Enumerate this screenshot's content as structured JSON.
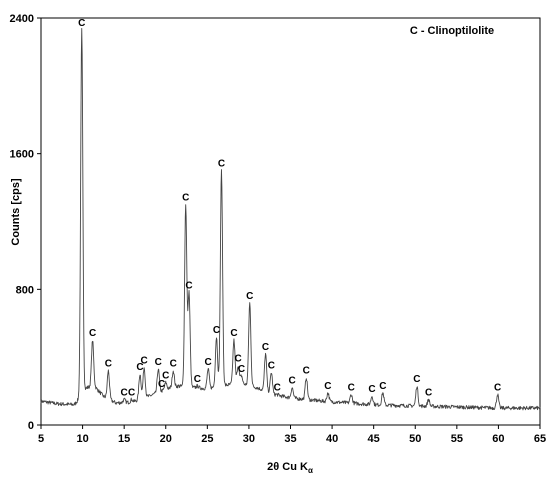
{
  "chart_data": {
    "type": "line",
    "xlabel": "2θ Cu K",
    "xlabel_subscript": "α",
    "ylabel": "Counts [cps]",
    "annotation": "C - Clinoptilolite",
    "xlim": [
      5,
      65
    ],
    "ylim": [
      0,
      2400
    ],
    "x_ticks": [
      5,
      10,
      15,
      20,
      25,
      30,
      35,
      40,
      45,
      50,
      55,
      60,
      65
    ],
    "y_ticks": [
      0,
      800,
      1600,
      2400
    ],
    "grid": false,
    "series_color": "#444444",
    "baseline": [
      [
        5,
        140
      ],
      [
        7,
        125
      ],
      [
        9,
        120
      ],
      [
        9.5,
        150
      ],
      [
        10.5,
        220
      ],
      [
        11.4,
        230
      ],
      [
        12.5,
        170
      ],
      [
        14,
        130
      ],
      [
        16,
        135
      ],
      [
        18,
        170
      ],
      [
        20,
        210
      ],
      [
        21.5,
        230
      ],
      [
        23.5,
        220
      ],
      [
        25,
        215
      ],
      [
        26.5,
        230
      ],
      [
        28,
        240
      ],
      [
        29.5,
        240
      ],
      [
        31,
        220
      ],
      [
        33,
        180
      ],
      [
        35,
        160
      ],
      [
        37,
        150
      ],
      [
        39,
        140
      ],
      [
        42,
        130
      ],
      [
        45,
        120
      ],
      [
        48,
        115
      ],
      [
        52,
        110
      ],
      [
        56,
        105
      ],
      [
        60,
        100
      ],
      [
        65,
        100
      ]
    ],
    "peaks": [
      {
        "x": 9.9,
        "y": 2330,
        "label": "C"
      },
      {
        "x": 11.2,
        "y": 500,
        "label": "C"
      },
      {
        "x": 13.1,
        "y": 320,
        "label": "C"
      },
      {
        "x": 15.0,
        "y": 150,
        "label": "C"
      },
      {
        "x": 15.9,
        "y": 150,
        "label": "C"
      },
      {
        "x": 16.9,
        "y": 300,
        "label": "C"
      },
      {
        "x": 17.4,
        "y": 340,
        "label": "C"
      },
      {
        "x": 19.1,
        "y": 330,
        "label": "C"
      },
      {
        "x": 19.5,
        "y": 200,
        "label": "C"
      },
      {
        "x": 20.0,
        "y": 250,
        "label": "C"
      },
      {
        "x": 20.9,
        "y": 320,
        "label": "C"
      },
      {
        "x": 22.4,
        "y": 1300,
        "label": "C"
      },
      {
        "x": 22.8,
        "y": 780,
        "label": "C"
      },
      {
        "x": 23.8,
        "y": 230,
        "label": "C"
      },
      {
        "x": 25.1,
        "y": 330,
        "label": "C"
      },
      {
        "x": 26.1,
        "y": 520,
        "label": "C"
      },
      {
        "x": 26.7,
        "y": 1500,
        "label": "C"
      },
      {
        "x": 28.2,
        "y": 500,
        "label": "C"
      },
      {
        "x": 28.7,
        "y": 350,
        "label": "C"
      },
      {
        "x": 29.1,
        "y": 290,
        "label": "C"
      },
      {
        "x": 30.1,
        "y": 720,
        "label": "C"
      },
      {
        "x": 32.0,
        "y": 420,
        "label": "C"
      },
      {
        "x": 32.7,
        "y": 310,
        "label": "C"
      },
      {
        "x": 33.4,
        "y": 180,
        "label": "C"
      },
      {
        "x": 35.2,
        "y": 220,
        "label": "C"
      },
      {
        "x": 36.9,
        "y": 280,
        "label": "C"
      },
      {
        "x": 39.5,
        "y": 190,
        "label": "C"
      },
      {
        "x": 42.3,
        "y": 180,
        "label": "C"
      },
      {
        "x": 44.8,
        "y": 170,
        "label": "C"
      },
      {
        "x": 46.1,
        "y": 190,
        "label": "C"
      },
      {
        "x": 50.2,
        "y": 230,
        "label": "C"
      },
      {
        "x": 51.6,
        "y": 150,
        "label": "C"
      },
      {
        "x": 59.9,
        "y": 180,
        "label": "C"
      }
    ]
  }
}
